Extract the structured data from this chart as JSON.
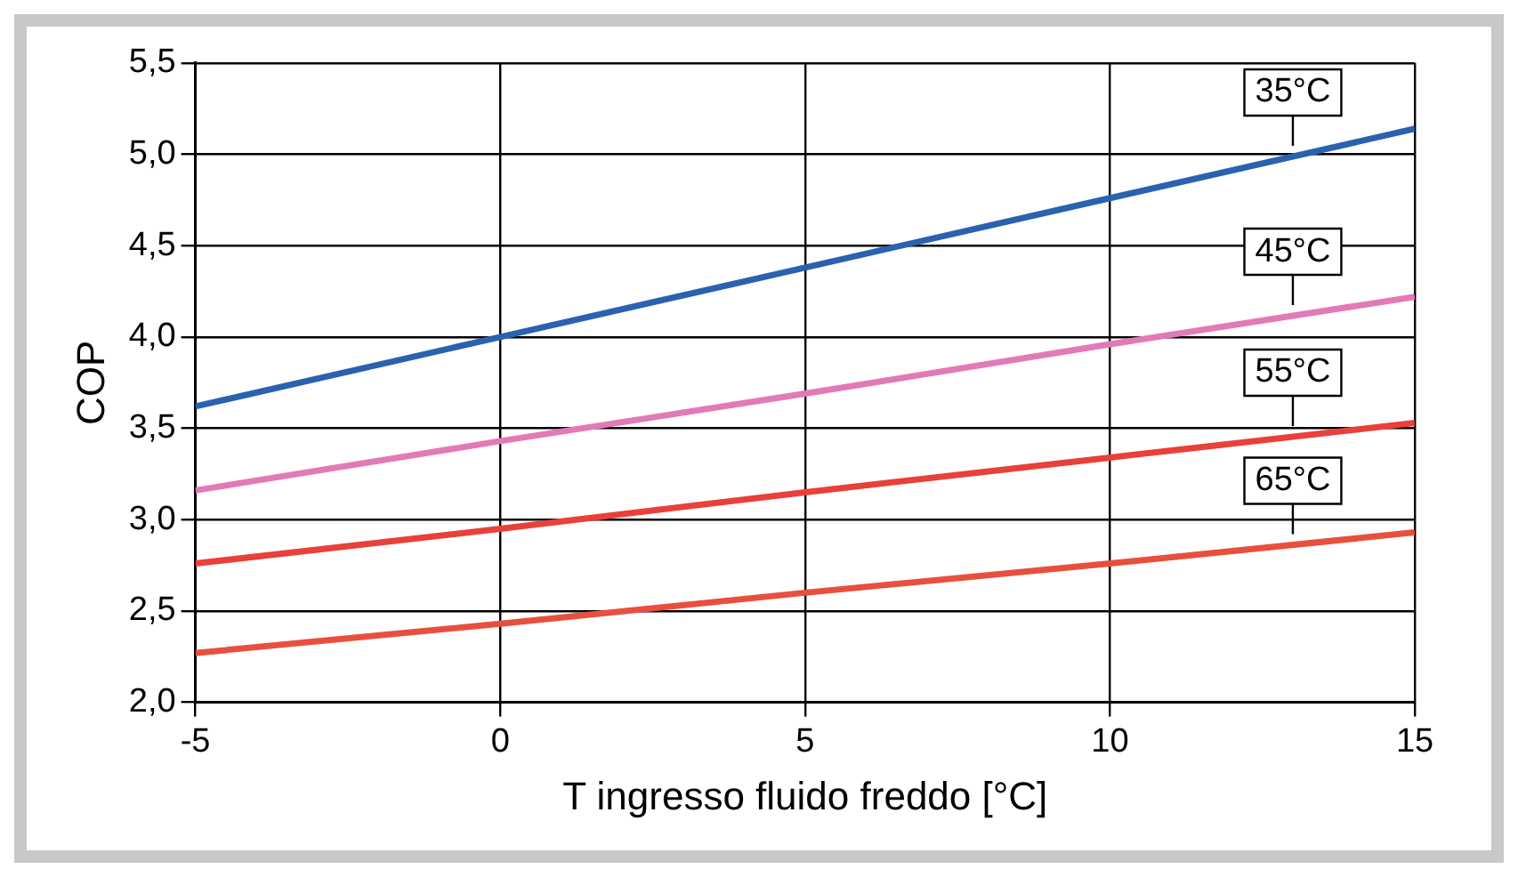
{
  "chart_data": {
    "type": "line",
    "xlabel": "T ingresso fluido freddo [°C]",
    "ylabel": "COP",
    "x": [
      -5,
      0,
      5,
      10,
      15
    ],
    "series": [
      {
        "name": "35°C",
        "color": "#2a62b0",
        "values": [
          3.62,
          4.0,
          4.38,
          4.76,
          5.14
        ]
      },
      {
        "name": "45°C",
        "color": "#e27ab8",
        "values": [
          3.16,
          3.43,
          3.69,
          3.96,
          4.22
        ]
      },
      {
        "name": "55°C",
        "color": "#e8403a",
        "values": [
          2.76,
          2.95,
          3.15,
          3.34,
          3.53
        ]
      },
      {
        "name": "65°C",
        "color": "#e8503e",
        "values": [
          2.27,
          2.43,
          2.6,
          2.76,
          2.93
        ]
      }
    ],
    "xlim": [
      -5,
      15
    ],
    "xticks": [
      -5,
      0,
      5,
      10,
      15
    ],
    "ylim": [
      2,
      5.5
    ],
    "yticks": [
      {
        "value": 2,
        "label": "2,0"
      },
      {
        "value": 2.5,
        "label": "2,5"
      },
      {
        "value": 3,
        "label": "3,0"
      },
      {
        "value": 3.5,
        "label": "3,5"
      },
      {
        "value": 4,
        "label": "4,0"
      },
      {
        "value": 4.5,
        "label": "4,5"
      },
      {
        "value": 5,
        "label": "5,0"
      },
      {
        "value": 5.5,
        "label": "5,5"
      }
    ],
    "grid": true,
    "legend": false,
    "marker": "none",
    "line_style": "solid"
  }
}
